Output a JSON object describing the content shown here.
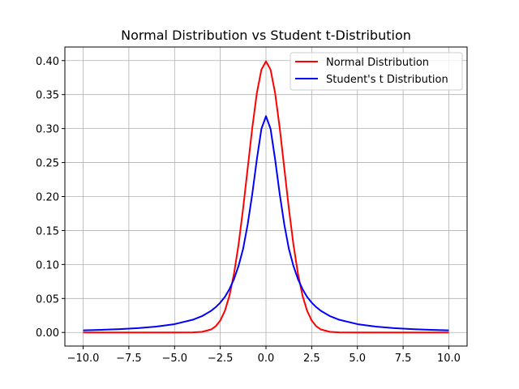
{
  "chart_data": {
    "type": "line",
    "title": "Normal Distribution vs Student t-Distribution",
    "xlabel": "",
    "ylabel": "",
    "xlim": [
      -11,
      11
    ],
    "ylim": [
      -0.02,
      0.42
    ],
    "grid": true,
    "legend_position": "top-right",
    "x_ticks": [
      -10,
      -7.5,
      -5,
      -2.5,
      0,
      2.5,
      5,
      7.5,
      10
    ],
    "x_tick_labels": [
      "−10.0",
      "−7.5",
      "−5.0",
      "−2.5",
      "0.0",
      "2.5",
      "5.0",
      "7.5",
      "10.0"
    ],
    "y_ticks": [
      0,
      0.05,
      0.1,
      0.15,
      0.2,
      0.25,
      0.3,
      0.35,
      0.4
    ],
    "y_tick_labels": [
      "0.00",
      "0.05",
      "0.10",
      "0.15",
      "0.20",
      "0.25",
      "0.30",
      "0.35",
      "0.40"
    ],
    "x": [
      -10,
      -9,
      -8,
      -7,
      -6,
      -5,
      -4,
      -3.5,
      -3,
      -2.75,
      -2.5,
      -2.25,
      -2,
      -1.75,
      -1.5,
      -1.25,
      -1,
      -0.75,
      -0.5,
      -0.25,
      0,
      0.25,
      0.5,
      0.75,
      1,
      1.25,
      1.5,
      1.75,
      2,
      2.25,
      2.5,
      2.75,
      3,
      3.5,
      4,
      5,
      6,
      7,
      8,
      9,
      10
    ],
    "series": [
      {
        "name": "Normal Distribution",
        "color": "#ff0000",
        "values": [
          0,
          0,
          0,
          0,
          0,
          1.5e-06,
          0.000134,
          0.000873,
          0.004432,
          0.009094,
          0.017528,
          0.03174,
          0.053991,
          0.086277,
          0.129518,
          0.182649,
          0.241971,
          0.301137,
          0.352065,
          0.386668,
          0.398942,
          0.386668,
          0.352065,
          0.301137,
          0.241971,
          0.182649,
          0.129518,
          0.086277,
          0.053991,
          0.03174,
          0.017528,
          0.009094,
          0.004432,
          0.000873,
          0.000134,
          1.5e-06,
          0,
          0,
          0,
          0,
          0
        ]
      },
      {
        "name": "Student's t Distribution",
        "color": "#0000ff",
        "values": [
          0.003152,
          0.00389,
          0.004897,
          0.006366,
          0.008607,
          0.012243,
          0.018724,
          0.023986,
          0.031831,
          0.037196,
          0.043905,
          0.052269,
          0.063662,
          0.078468,
          0.097942,
          0.123233,
          0.159155,
          0.203718,
          0.254648,
          0.299593,
          0.31831,
          0.299593,
          0.254648,
          0.203718,
          0.159155,
          0.123233,
          0.097942,
          0.078468,
          0.063662,
          0.052269,
          0.043905,
          0.037196,
          0.031831,
          0.023986,
          0.018724,
          0.012243,
          0.008607,
          0.006366,
          0.004897,
          0.00389,
          0.003152
        ]
      }
    ]
  }
}
